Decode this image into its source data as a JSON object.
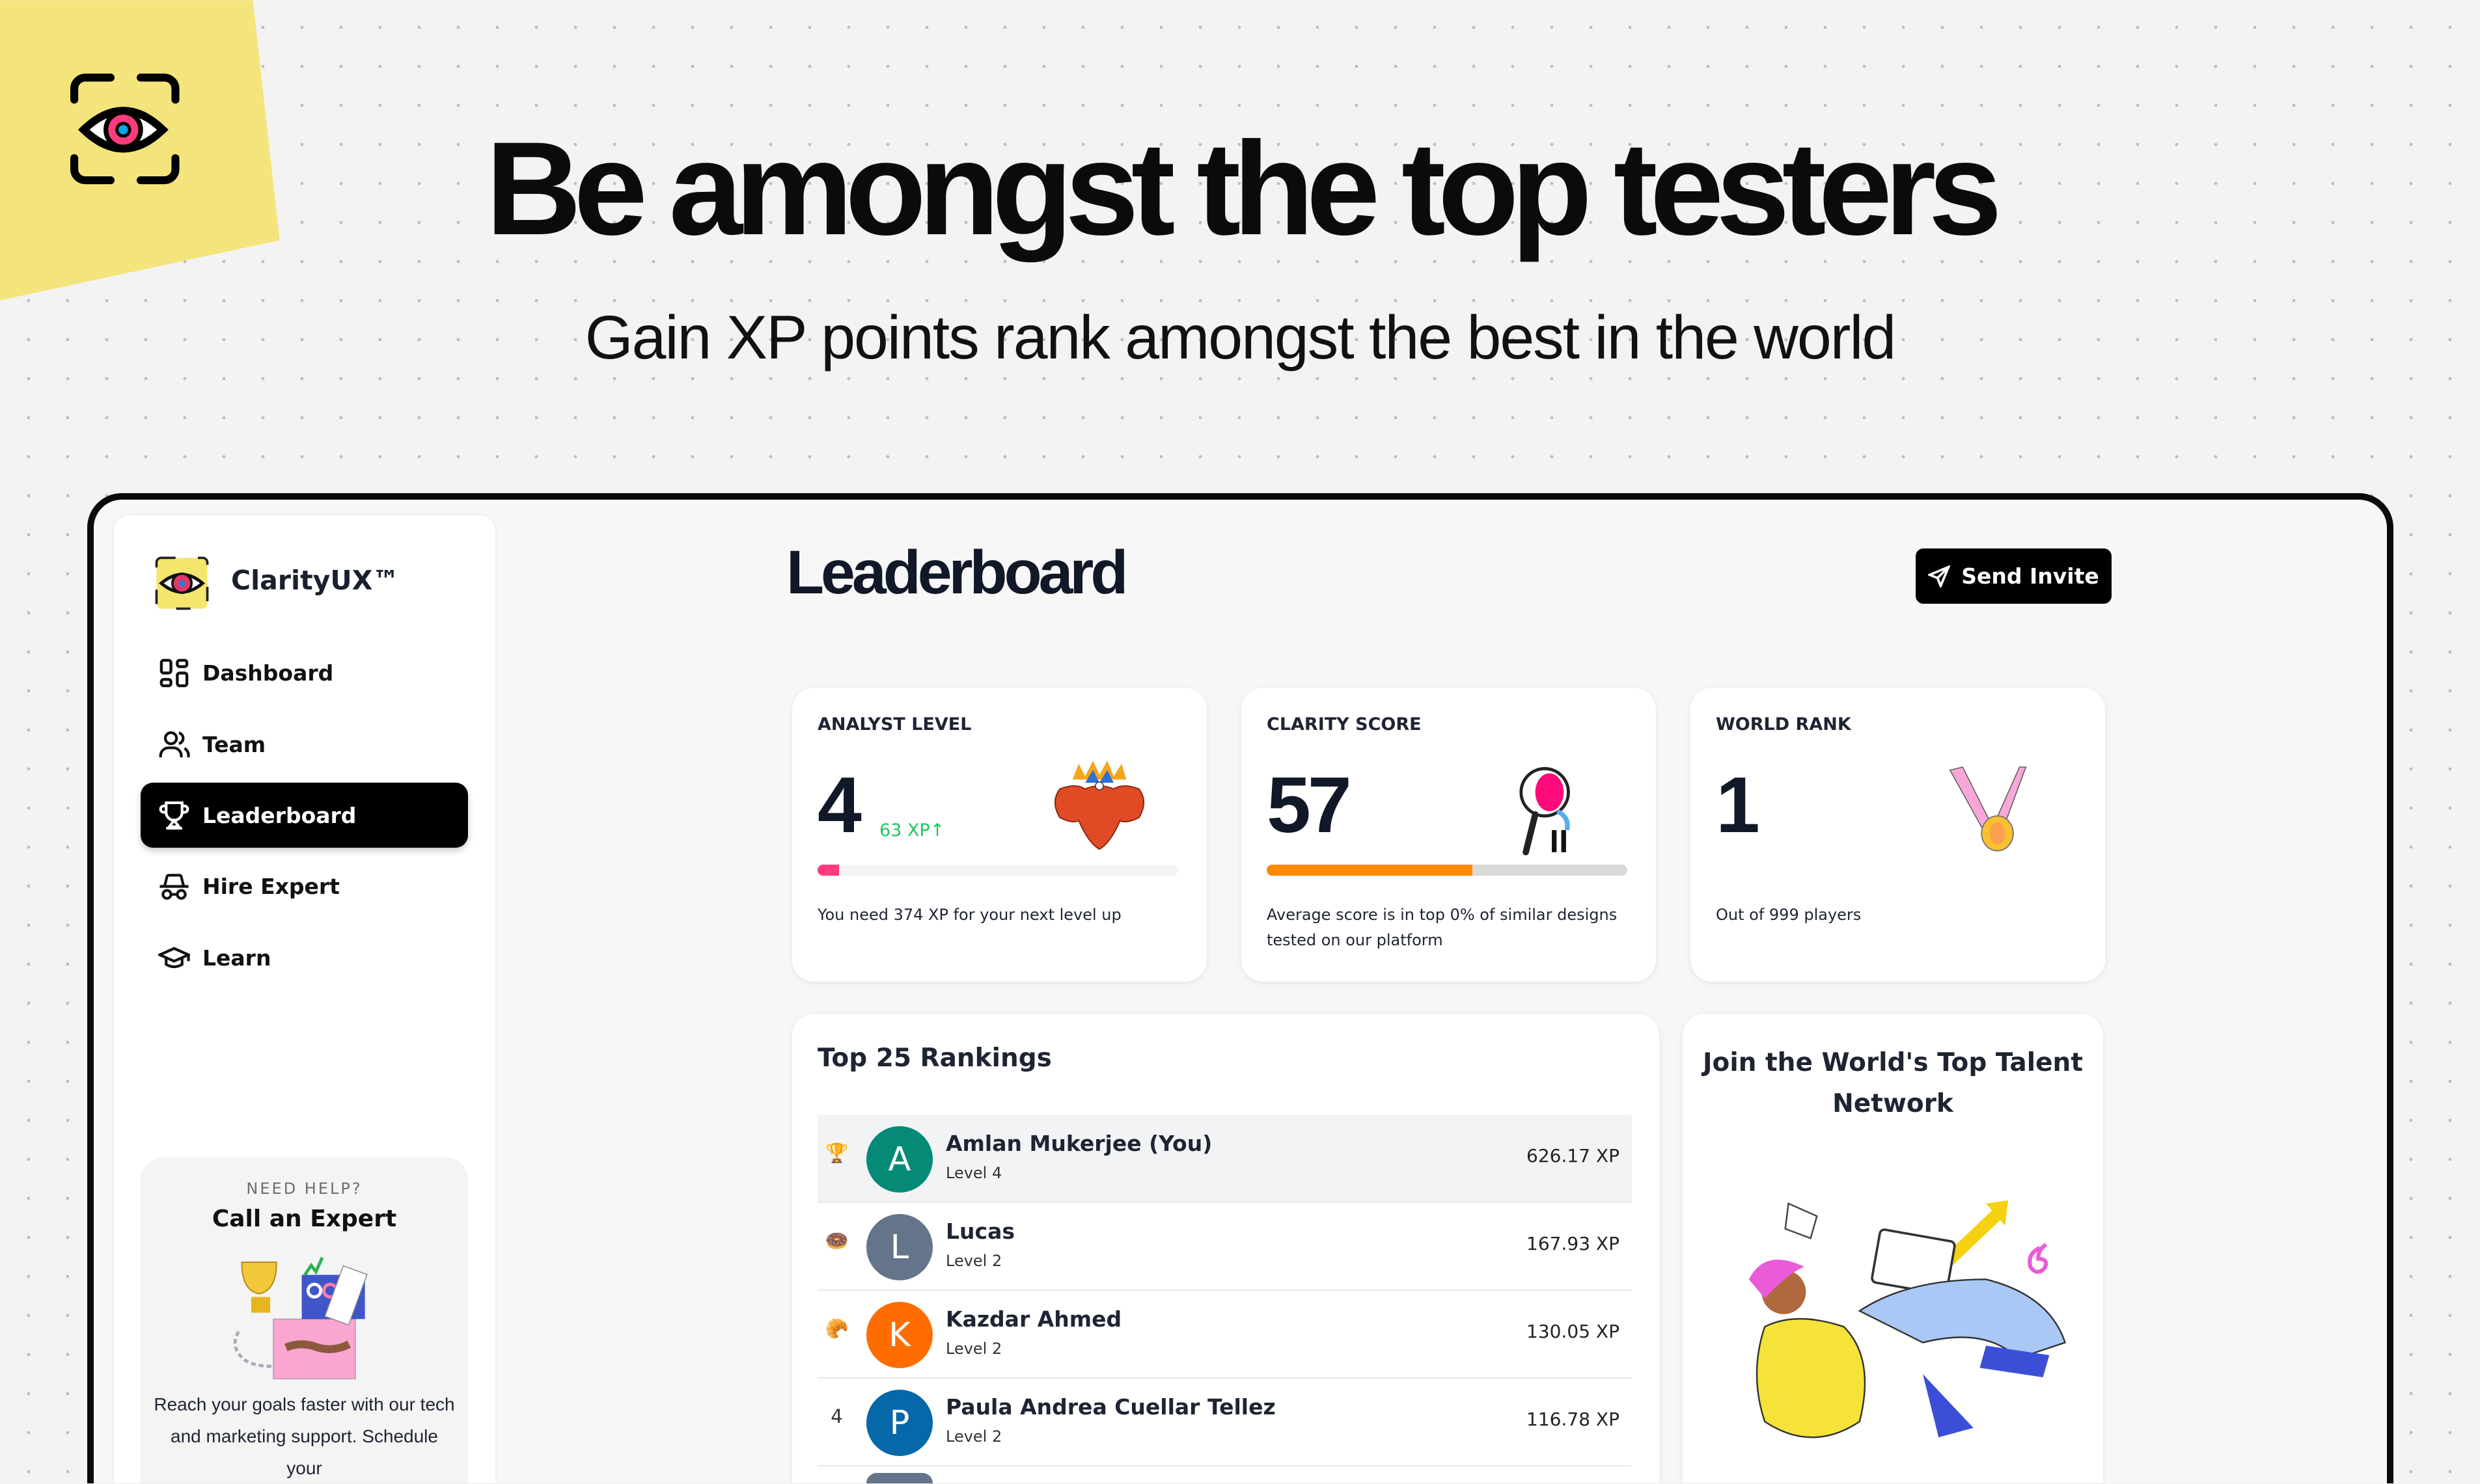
{
  "hero": {
    "title": "Be amongst the top testers",
    "subtitle": "Gain XP points rank amongst the best in the world"
  },
  "colors": {
    "sticky": "#f4e47c",
    "accent_pink": "#ff3b7f",
    "accent_orange": "#ff8a00",
    "xp_green": "#22c55e",
    "active_nav": "#000000"
  },
  "sidebar": {
    "brand": "ClarityUX™",
    "items": [
      {
        "label": "Dashboard",
        "icon": "grid-icon",
        "active": false
      },
      {
        "label": "Team",
        "icon": "users-icon",
        "active": false
      },
      {
        "label": "Leaderboard",
        "icon": "trophy-icon",
        "active": true
      },
      {
        "label": "Hire Expert",
        "icon": "incognito-icon",
        "active": false
      },
      {
        "label": "Learn",
        "icon": "graduation-cap-icon",
        "active": false
      }
    ],
    "help": {
      "kicker": "NEED HELP?",
      "title": "Call an Expert",
      "description": "Reach your goals faster with our tech and marketing support. Schedule your"
    }
  },
  "main": {
    "title": "Leaderboard",
    "invite_label": "Send Invite",
    "stats": [
      {
        "label": "ANALYST LEVEL",
        "value": "4",
        "xp_gain": "63 XP↑",
        "progress": 0.06,
        "progress_color": "#ff3b7f",
        "description": "You need 374 XP for your next level up"
      },
      {
        "label": "CLARITY SCORE",
        "value": "57",
        "progress": 0.57,
        "progress_color": "#ff8a00",
        "description": "Average score is in top 0% of similar designs tested on our platform"
      },
      {
        "label": "WORLD RANK",
        "value": "1",
        "description": "Out of 999 players"
      }
    ],
    "rankings": {
      "title": "Top 25 Rankings",
      "rows": [
        {
          "rank_badge": "🏆",
          "initial": "A",
          "color": "#058a78",
          "name": "Amlan Mukerjee (You)",
          "level": "Level 4",
          "xp": "626.17 XP"
        },
        {
          "rank_badge": "🍩",
          "initial": "L",
          "color": "#64748b",
          "name": "Lucas",
          "level": "Level 2",
          "xp": "167.93 XP"
        },
        {
          "rank_badge": "🥐",
          "initial": "K",
          "color": "#ff6d00",
          "name": "Kazdar Ahmed",
          "level": "Level 2",
          "xp": "130.05 XP"
        },
        {
          "rank_badge": "4",
          "initial": "P",
          "color": "#0667a9",
          "name": "Paula Andrea Cuellar Tellez",
          "level": "Level 2",
          "xp": "116.78 XP"
        }
      ]
    },
    "join": {
      "title": "Join the World's Top Talent Network"
    }
  }
}
